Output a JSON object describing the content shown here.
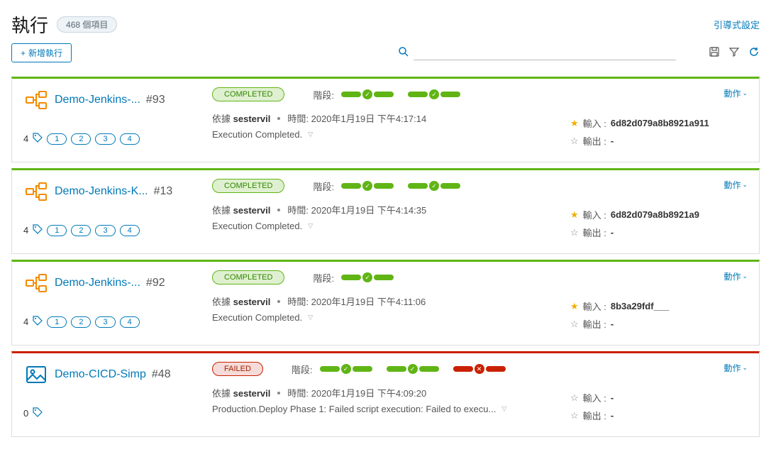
{
  "header": {
    "title": "執行",
    "count_badge": "468 個項目",
    "guided_setup": "引導式設定"
  },
  "toolbar": {
    "add_label": "新增執行"
  },
  "labels": {
    "stages": "階段:",
    "by": "依據",
    "time": "時間:",
    "input": "輸入 :",
    "output": "輸出 :",
    "actions": "動作"
  },
  "status": {
    "completed": "COMPLETED",
    "failed": "FAILED"
  },
  "executions": [
    {
      "icon": "pipeline",
      "name": "Demo-Jenkins-...",
      "run_number": "#93",
      "tag_count": "4",
      "tags": [
        "1",
        "2",
        "3",
        "4"
      ],
      "status": "completed",
      "border": "success",
      "stages": [
        [
          "g",
          "g"
        ],
        [
          "g",
          "g"
        ]
      ],
      "user": "sestervil",
      "timestamp": "2020年1月19日 下午4:17:14",
      "message": "Execution Completed.",
      "input_starred": true,
      "input_value": "6d82d079a8b8921a911",
      "output_starred": false,
      "output_value": "-"
    },
    {
      "icon": "pipeline",
      "name": "Demo-Jenkins-K...",
      "run_number": "#13",
      "tag_count": "4",
      "tags": [
        "1",
        "2",
        "3",
        "4"
      ],
      "status": "completed",
      "border": "success",
      "stages": [
        [
          "g",
          "g"
        ],
        [
          "g",
          "g"
        ]
      ],
      "user": "sestervil",
      "timestamp": "2020年1月19日 下午4:14:35",
      "message": "Execution Completed.",
      "input_starred": true,
      "input_value": "6d82d079a8b8921a9",
      "output_starred": false,
      "output_value": "-"
    },
    {
      "icon": "pipeline",
      "name": "Demo-Jenkins-...",
      "run_number": "#92",
      "tag_count": "4",
      "tags": [
        "1",
        "2",
        "3",
        "4"
      ],
      "status": "completed",
      "border": "success",
      "stages": [
        [
          "g",
          "g"
        ]
      ],
      "user": "sestervil",
      "timestamp": "2020年1月19日 下午4:11:06",
      "message": "Execution Completed.",
      "input_starred": true,
      "input_value": "8b3a29fdf___",
      "output_starred": false,
      "output_value": "-"
    },
    {
      "icon": "image",
      "name": "Demo-CICD-Simp",
      "run_number": "#48",
      "tag_count": "0",
      "tags": [],
      "status": "failed",
      "border": "failed",
      "stages": [
        [
          "g",
          "g"
        ],
        [
          "g",
          "g"
        ],
        [
          "r",
          "r"
        ]
      ],
      "user": "sestervil",
      "timestamp": "2020年1月19日 下午4:09:20",
      "message": "Production.Deploy Phase 1: Failed script execution: Failed to execu...",
      "input_starred": false,
      "input_value": "-",
      "output_starred": false,
      "output_value": "-"
    }
  ]
}
